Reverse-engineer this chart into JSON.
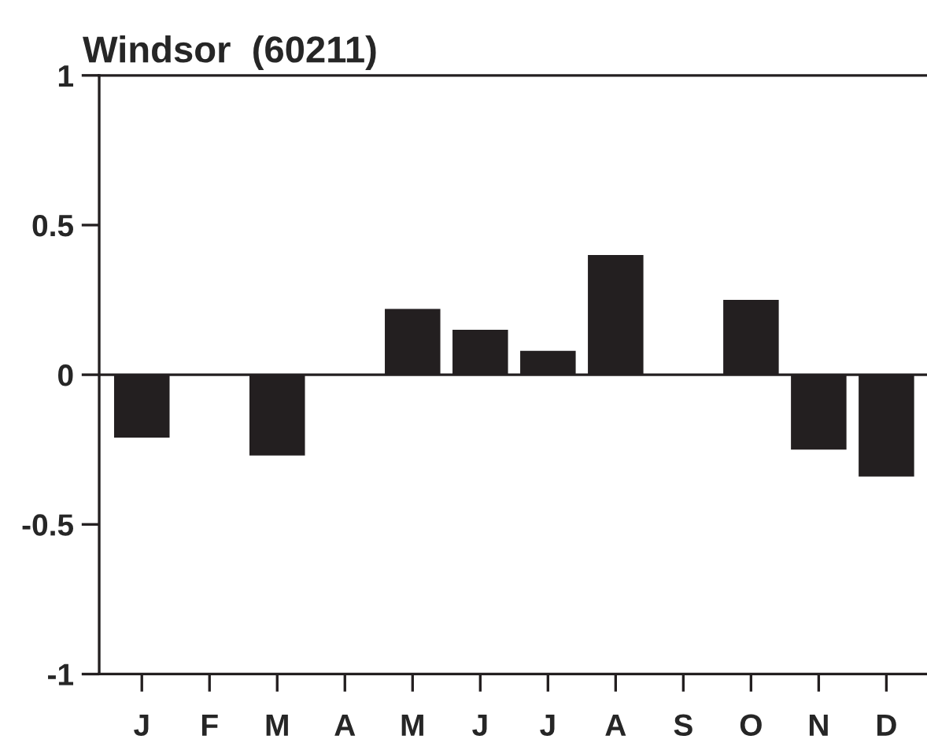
{
  "chart_data": {
    "type": "bar",
    "title": "Windsor  (60211)",
    "categories": [
      "J",
      "F",
      "M",
      "A",
      "M",
      "J",
      "J",
      "A",
      "S",
      "O",
      "N",
      "D"
    ],
    "values": [
      -0.21,
      0,
      -0.27,
      0,
      0.22,
      0.15,
      0.08,
      0.4,
      0,
      0.25,
      -0.25,
      -0.34
    ],
    "color": "#231f20",
    "ylim": [
      -1,
      1
    ],
    "yticks": [
      {
        "value": -1,
        "label": "-1"
      },
      {
        "value": -0.5,
        "label": "-0.5"
      },
      0,
      0.5,
      1
    ]
  }
}
